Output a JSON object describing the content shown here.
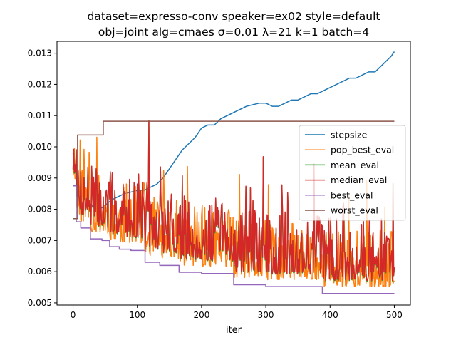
{
  "chart_data": {
    "type": "line",
    "title_line1": "dataset=expresso-conv speaker=ex02 style=default",
    "title_line2": "obj=joint alg=cmaes σ=0.01 λ=21 k=1 batch=4",
    "xlabel": "iter",
    "ylabel": "",
    "xlim": [
      -25,
      525
    ],
    "ylim": [
      0.00493,
      0.01338
    ],
    "x_ticks": [
      0,
      100,
      200,
      300,
      400,
      500
    ],
    "x_tick_labels": [
      "0",
      "100",
      "200",
      "300",
      "400",
      "500"
    ],
    "y_ticks": [
      0.005,
      0.006,
      0.007,
      0.008,
      0.009,
      0.01,
      0.011,
      0.012,
      0.013
    ],
    "y_tick_labels": [
      "0.005",
      "0.006",
      "0.007",
      "0.008",
      "0.009",
      "0.010",
      "0.011",
      "0.012",
      "0.013"
    ],
    "grid": false,
    "legend_position": "center-right",
    "series": [
      {
        "name": "stepsize",
        "color": "#1f77b4",
        "kind": "points",
        "points": [
          [
            0,
            0.0098
          ],
          [
            3,
            0.0093
          ],
          [
            8,
            0.0088
          ],
          [
            13,
            0.0085
          ],
          [
            18,
            0.0083
          ],
          [
            25,
            0.0082
          ],
          [
            35,
            0.008
          ],
          [
            45,
            0.00805
          ],
          [
            60,
            0.0083
          ],
          [
            80,
            0.0085
          ],
          [
            100,
            0.0086
          ],
          [
            110,
            0.0086
          ],
          [
            120,
            0.0087
          ],
          [
            130,
            0.0088
          ],
          [
            140,
            0.009
          ],
          [
            150,
            0.0093
          ],
          [
            160,
            0.0096
          ],
          [
            170,
            0.0099
          ],
          [
            180,
            0.0101
          ],
          [
            190,
            0.0103
          ],
          [
            200,
            0.0106
          ],
          [
            210,
            0.0107
          ],
          [
            220,
            0.0107
          ],
          [
            230,
            0.0109
          ],
          [
            240,
            0.011
          ],
          [
            250,
            0.0111
          ],
          [
            260,
            0.0112
          ],
          [
            270,
            0.0113
          ],
          [
            280,
            0.01135
          ],
          [
            290,
            0.0114
          ],
          [
            300,
            0.0114
          ],
          [
            310,
            0.0113
          ],
          [
            320,
            0.0113
          ],
          [
            330,
            0.0114
          ],
          [
            340,
            0.0115
          ],
          [
            350,
            0.0115
          ],
          [
            360,
            0.0116
          ],
          [
            370,
            0.0117
          ],
          [
            380,
            0.0117
          ],
          [
            390,
            0.0118
          ],
          [
            400,
            0.0119
          ],
          [
            410,
            0.012
          ],
          [
            420,
            0.0121
          ],
          [
            430,
            0.0122
          ],
          [
            440,
            0.0122
          ],
          [
            450,
            0.0123
          ],
          [
            460,
            0.0124
          ],
          [
            470,
            0.0124
          ],
          [
            480,
            0.0126
          ],
          [
            490,
            0.0128
          ],
          [
            495,
            0.0129
          ],
          [
            500,
            0.01305
          ]
        ]
      },
      {
        "name": "pop_best_eval",
        "color": "#ff7f0e",
        "kind": "noisy",
        "base_from": "best_eval",
        "amp_min": 0.0003,
        "amp_max": 0.0022,
        "spike_rate": 0.05,
        "spike_amp": 0.0015,
        "seed": 11,
        "offset": -8e-05
      },
      {
        "name": "mean_eval",
        "color": "#2ca02c",
        "kind": "noisy",
        "base_from": "best_eval",
        "amp_min": 0.0004,
        "amp_max": 0.0024,
        "spike_rate": 0.05,
        "spike_amp": 0.0016,
        "seed": 7,
        "offset": 0.0
      },
      {
        "name": "median_eval",
        "color": "#d62728",
        "kind": "noisy",
        "base_from": "best_eval",
        "amp_min": 0.0004,
        "amp_max": 0.0024,
        "spike_rate": 0.05,
        "spike_amp": 0.0016,
        "seed": 7,
        "offset": 2e-05
      },
      {
        "name": "best_eval",
        "color": "#9467bd",
        "kind": "step",
        "steps": [
          [
            0,
            0.00875
          ],
          [
            5,
            0.0076
          ],
          [
            12,
            0.0074
          ],
          [
            27,
            0.00705
          ],
          [
            45,
            0.007
          ],
          [
            57,
            0.0068
          ],
          [
            72,
            0.00672
          ],
          [
            90,
            0.00668
          ],
          [
            112,
            0.0063
          ],
          [
            135,
            0.0062
          ],
          [
            165,
            0.00598
          ],
          [
            200,
            0.00594
          ],
          [
            250,
            0.00558
          ],
          [
            300,
            0.00552
          ],
          [
            388,
            0.0053
          ],
          [
            500,
            0.0053
          ]
        ]
      },
      {
        "name": "worst_eval",
        "color": "#8c564b",
        "kind": "step",
        "steps": [
          [
            0,
            0.0077
          ],
          [
            7,
            0.01038
          ],
          [
            47,
            0.01082
          ],
          [
            500,
            0.01082
          ]
        ]
      }
    ]
  }
}
